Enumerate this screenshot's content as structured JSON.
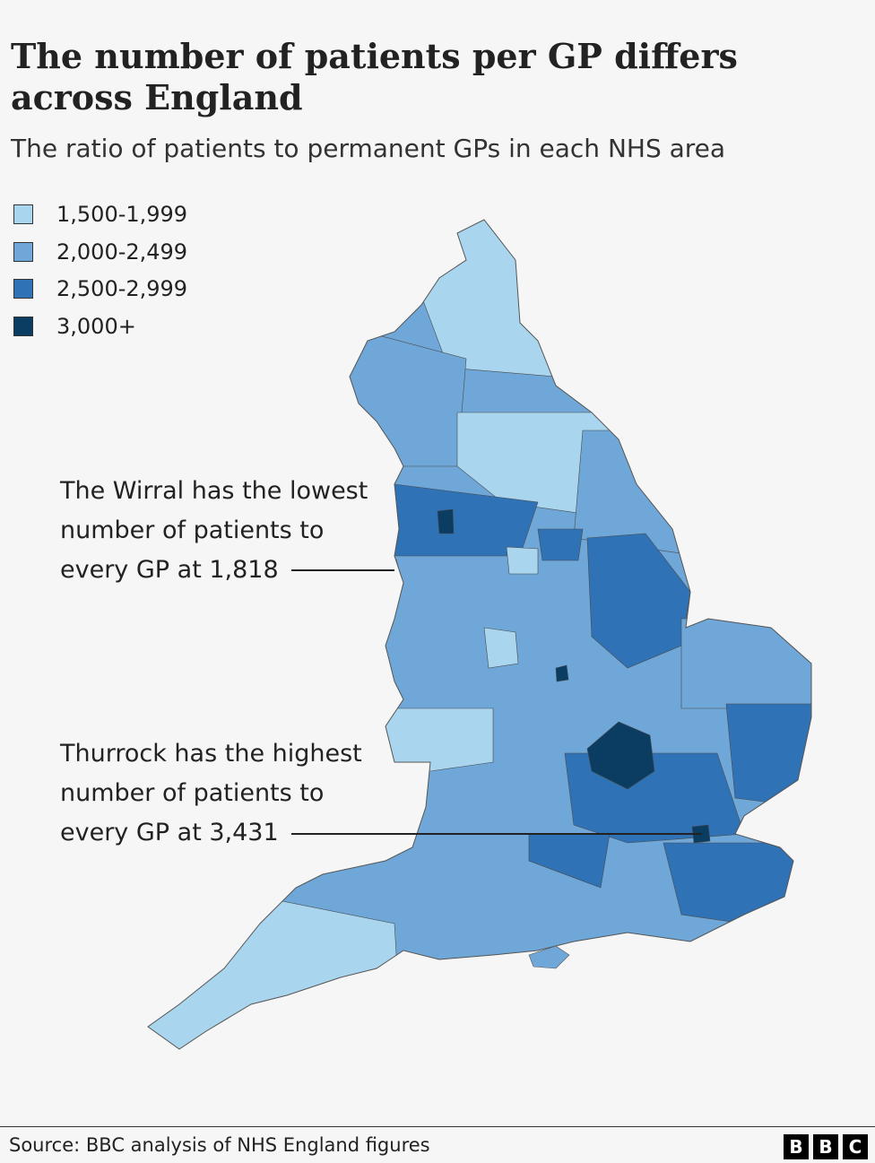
{
  "header": {
    "title": "The number of patients per GP differs across England",
    "subtitle": "The ratio of patients to permanent GPs in each NHS area"
  },
  "legend": [
    {
      "label": "1,500-1,999",
      "color": "#a9d6ee"
    },
    {
      "label": "2,000-2,499",
      "color": "#6ea7d8"
    },
    {
      "label": "2,500-2,999",
      "color": "#2f72b6"
    },
    {
      "label": "3,000+",
      "color": "#0b3d62"
    }
  ],
  "annotations": [
    {
      "text": "The Wirral has the lowest number of patients to every GP at 1,818"
    },
    {
      "text": "Thurrock has the highest number of patients to every GP at 3,431"
    }
  ],
  "footer": {
    "source": "Source: BBC analysis of NHS England figures",
    "logo": [
      "B",
      "B",
      "C"
    ]
  }
}
